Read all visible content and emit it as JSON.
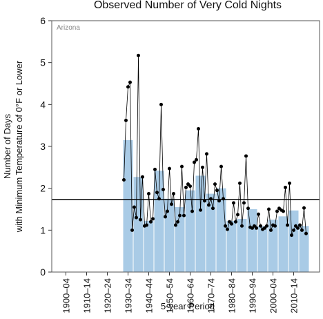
{
  "chart_data": {
    "type": "bar",
    "title": "Observed Number of Very Cold Nights",
    "y_label_lines": [
      "Number of Days",
      "with Minimum Temperature of 0°F or Lower"
    ],
    "x_label": "5-year Period",
    "annotation": "Arizona",
    "categories": [
      "1900–04",
      null,
      "1910–14",
      null,
      "1920–24",
      null,
      "1930–34",
      null,
      "1940–44",
      null,
      "1950–54",
      null,
      "1960–64",
      null,
      "1970–74",
      null,
      "1980–84",
      null,
      "1990–94",
      null,
      "2000–04",
      null,
      "2010–14",
      null
    ],
    "values": [
      null,
      null,
      null,
      null,
      null,
      null,
      3.15,
      2.27,
      1.22,
      2.42,
      1.75,
      1.55,
      1.95,
      2.3,
      1.87,
      2.0,
      1.22,
      1.27,
      1.5,
      1.1,
      1.25,
      1.33,
      1.47,
      1.1
    ],
    "color": "#a9cbe6",
    "annual": {
      "x": [
        1930,
        1931,
        1932,
        1933,
        1934,
        1935,
        1936,
        1937,
        1938,
        1939,
        1940,
        1941,
        1942,
        1943,
        1944,
        1945,
        1946,
        1947,
        1948,
        1949,
        1950,
        1951,
        1952,
        1953,
        1954,
        1955,
        1956,
        1957,
        1958,
        1959,
        1960,
        1961,
        1962,
        1963,
        1964,
        1965,
        1966,
        1967,
        1968,
        1969,
        1970,
        1971,
        1972,
        1973,
        1974,
        1975,
        1976,
        1977,
        1978,
        1979,
        1980,
        1981,
        1982,
        1983,
        1984,
        1985,
        1986,
        1987,
        1988,
        1989,
        1990,
        1991,
        1992,
        1993,
        1994,
        1995,
        1996,
        1997,
        1998,
        1999,
        2000,
        2001,
        2002,
        2003,
        2004,
        2005,
        2006,
        2007,
        2008,
        2009,
        2010,
        2011,
        2012,
        2013,
        2014,
        2015,
        2016,
        2017,
        2018
      ],
      "values": [
        2.2,
        3.62,
        4.42,
        4.53,
        1.0,
        1.55,
        1.3,
        5.17,
        1.25,
        2.27,
        1.1,
        1.12,
        1.87,
        1.2,
        1.27,
        2.45,
        1.9,
        1.75,
        4.0,
        1.97,
        1.32,
        1.45,
        2.47,
        1.62,
        1.87,
        1.12,
        1.2,
        1.35,
        2.52,
        1.35,
        2.02,
        2.1,
        2.05,
        1.45,
        2.62,
        2.68,
        3.42,
        1.48,
        2.5,
        1.7,
        2.82,
        1.6,
        1.75,
        1.52,
        2.1,
        1.95,
        1.7,
        2.52,
        1.75,
        1.1,
        1.02,
        1.2,
        1.15,
        1.65,
        1.2,
        1.37,
        2.12,
        1.1,
        1.65,
        2.77,
        1.52,
        1.07,
        1.05,
        1.1,
        1.05,
        1.38,
        1.1,
        1.02,
        1.05,
        1.1,
        1.5,
        1.0,
        1.12,
        1.1,
        1.45,
        1.52,
        1.48,
        1.45,
        2.02,
        1.12,
        2.12,
        0.88,
        1.0,
        1.1,
        1.05,
        1.12,
        1.0,
        1.53,
        0.92
      ],
      "color": "#000000"
    },
    "reference_line": 1.73,
    "ylim": [
      0,
      6
    ],
    "yticks": [
      0,
      1,
      2,
      3,
      4,
      5,
      6
    ]
  }
}
